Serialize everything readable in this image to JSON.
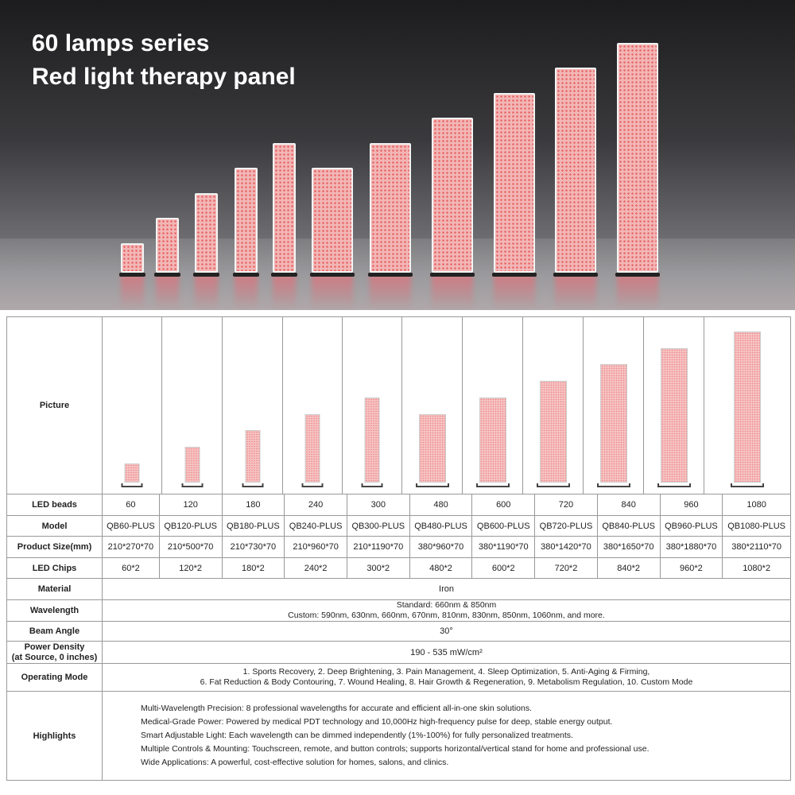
{
  "hero": {
    "title_line1": "60 lamps series",
    "title_line2": "Red light therapy panel"
  },
  "table": {
    "row_labels": {
      "picture": "Picture",
      "led_beads": "LED beads",
      "model": "Model",
      "product_size": "Product Size(mm)",
      "led_chips": "LED Chips",
      "material": "Material",
      "wavelength": "Wavelength",
      "beam_angle": "Beam Angle",
      "power_density_1": "Power Density",
      "power_density_2": "(at Source, 0 inches)",
      "operating_mode": "Operating Mode",
      "highlights": "Highlights"
    },
    "products": [
      {
        "beads": "60",
        "model": "QB60-PLUS",
        "size": "210*270*70",
        "chips": "60*2"
      },
      {
        "beads": "120",
        "model": "QB120-PLUS",
        "size": "210*500*70",
        "chips": "120*2"
      },
      {
        "beads": "180",
        "model": "QB180-PLUS",
        "size": "210*730*70",
        "chips": "180*2"
      },
      {
        "beads": "240",
        "model": "QB240-PLUS",
        "size": "210*960*70",
        "chips": "240*2"
      },
      {
        "beads": "300",
        "model": "QB300-PLUS",
        "size": "210*1190*70",
        "chips": "300*2"
      },
      {
        "beads": "480",
        "model": "QB480-PLUS",
        "size": "380*960*70",
        "chips": "480*2"
      },
      {
        "beads": "600",
        "model": "QB600-PLUS",
        "size": "380*1190*70",
        "chips": "600*2"
      },
      {
        "beads": "720",
        "model": "QB720-PLUS",
        "size": "380*1420*70",
        "chips": "720*2"
      },
      {
        "beads": "840",
        "model": "QB840-PLUS",
        "size": "380*1650*70",
        "chips": "840*2"
      },
      {
        "beads": "960",
        "model": "QB960-PLUS",
        "size": "380*1880*70",
        "chips": "960*2"
      },
      {
        "beads": "1080",
        "model": "QB1080-PLUS",
        "size": "380*2110*70",
        "chips": "1080*2"
      }
    ],
    "material": "Iron",
    "wavelength_standard": "Standard: 660nm & 850nm",
    "wavelength_custom": "Custom: 590nm, 630nm, 660nm, 670nm, 810nm, 830nm, 850nm, 1060nm, and more.",
    "beam_angle": "30°",
    "power_density": "190 - 535 mW/cm²",
    "operating_mode_1": "1. Sports Recovery, 2. Deep Brightening, 3. Pain Management, 4. Sleep Optimization, 5. Anti-Aging & Firming,",
    "operating_mode_2": "6. Fat Reduction & Body Contouring, 7. Wound Healing, 8. Hair Growth & Regeneration, 9. Metabolism Regulation, 10. Custom Mode",
    "highlights": [
      "Multi-Wavelength Precision: 8 professional wavelengths for accurate and efficient all-in-one skin solutions.",
      "Medical-Grade Power: Powered by medical PDT technology and 10,000Hz high-frequency pulse for deep, stable energy output.",
      "Smart Adjustable Light: Each wavelength can be dimmed independently (1%-100%) for fully personalized treatments.",
      "Multiple Controls & Mounting: Touchscreen, remote, and button controls; supports horizontal/vertical stand for home and professional use.",
      "Wide Applications: A powerful, cost-effective solution for homes, salons, and clinics."
    ]
  }
}
